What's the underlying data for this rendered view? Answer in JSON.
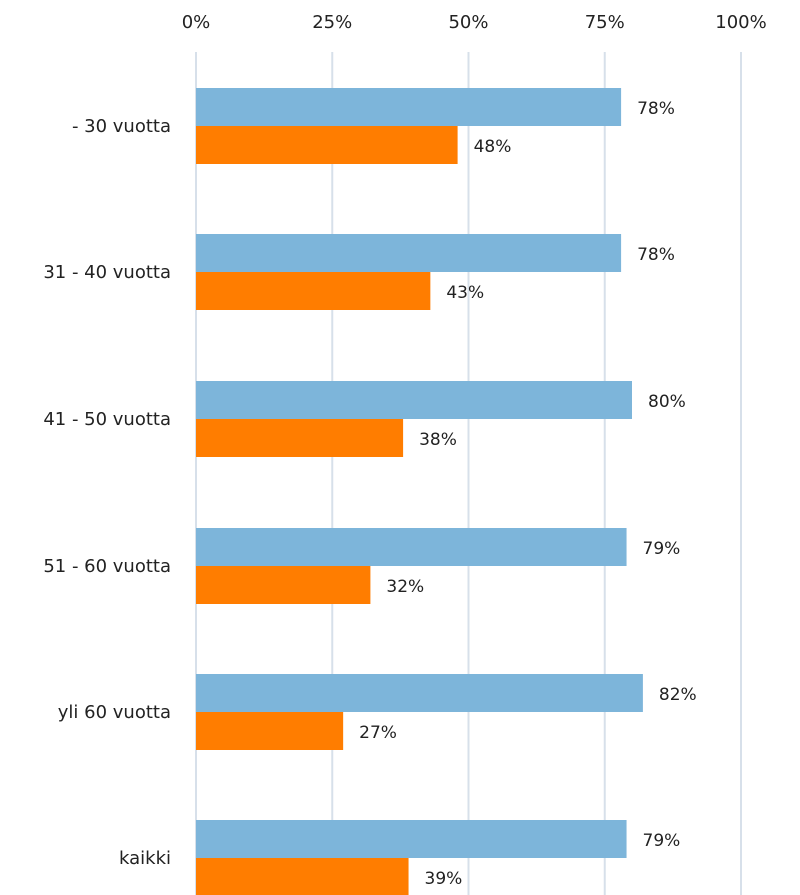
{
  "chart_data": {
    "type": "bar",
    "orientation": "horizontal",
    "categories": [
      "- 30 vuotta",
      "31 - 40 vuotta",
      "41 - 50 vuotta",
      "51 - 60 vuotta",
      "yli 60 vuotta",
      "kaikki"
    ],
    "series": [
      {
        "values": [
          78,
          78,
          80,
          79,
          82,
          79
        ],
        "color": "#7db5da"
      },
      {
        "values": [
          48,
          43,
          38,
          32,
          27,
          39
        ],
        "color": "#ff7d00"
      }
    ],
    "x_ticks": [
      0,
      25,
      50,
      75,
      100
    ],
    "x_tick_labels": [
      "0%",
      "25%",
      "50%",
      "75%",
      "100%"
    ],
    "xlim": [
      0,
      100
    ],
    "grid": true,
    "legend": "none",
    "axis_position": "top",
    "data_labels": true,
    "value_suffix": "%"
  }
}
